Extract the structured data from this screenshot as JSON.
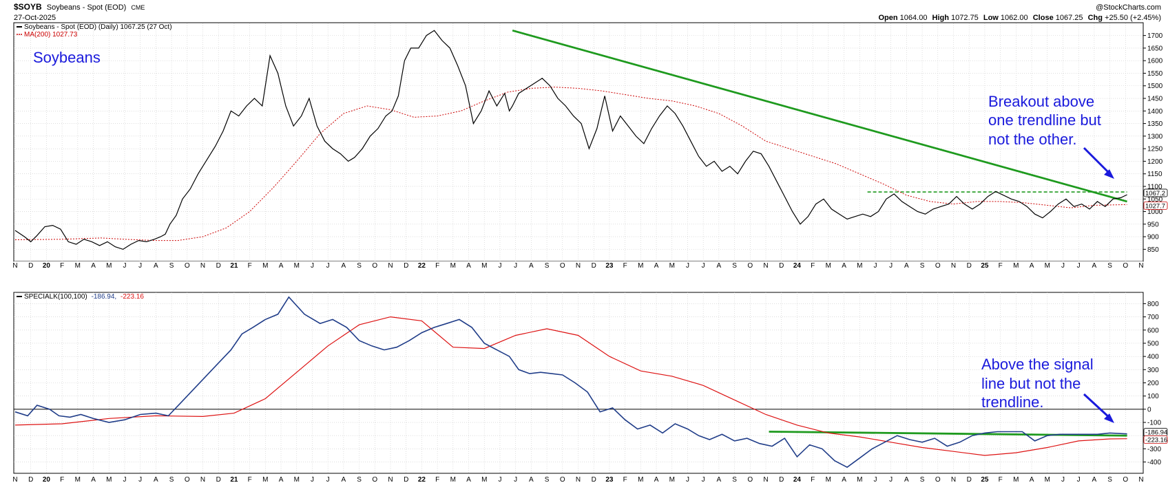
{
  "header": {
    "symbol": "$SOYB",
    "name": "Soybeans - Spot (EOD)",
    "exchange": "CME",
    "date": "27-Oct-2025",
    "copyright": "@StockCharts.com",
    "ohlc": {
      "open_label": "Open",
      "open": "1064.00",
      "high_label": "High",
      "high": "1072.75",
      "low_label": "Low",
      "low": "1062.00",
      "close_label": "Close",
      "close": "1067.25",
      "chg_label": "Chg",
      "chg": "+25.50 (+2.45%)"
    }
  },
  "colors": {
    "price": "#000000",
    "ma": "#cc0000",
    "special_k": "#1f3c88",
    "signal": "#dd1111",
    "trendline": "#1e9a1e",
    "annotation": "#1a1adc",
    "grid": "#c8c8c8"
  },
  "chart_data": [
    {
      "type": "line",
      "panel": "price",
      "title": "Soybeans",
      "legend": [
        {
          "label": "Soybeans - Spot (EOD) (Daily) 1067.25 (27 Oct)"
        },
        {
          "label": "MA(200) 1027.73"
        }
      ],
      "ylim": [
        810,
        1740
      ],
      "yticks": [
        850,
        900,
        950,
        1000,
        1050,
        1100,
        1150,
        1200,
        1250,
        1300,
        1350,
        1400,
        1450,
        1500,
        1550,
        1600,
        1650,
        1700
      ],
      "value_chips": [
        {
          "label": "1067.2",
          "value": 1067.25
        },
        {
          "label": "1027.7",
          "value": 1027.73
        }
      ],
      "series": [
        {
          "name": "Soybeans - Spot (EOD)",
          "x": [
            0,
            0.6,
            1.0,
            1.4,
            1.9,
            2.4,
            2.9,
            3.4,
            3.9,
            4.4,
            4.9,
            5.4,
            5.9,
            6.4,
            6.9,
            7.4,
            7.9,
            8.4,
            8.9,
            9.3,
            9.6,
            9.9,
            10.3,
            10.7,
            11.2,
            11.7,
            12.3,
            12.8,
            13.3,
            13.8,
            14.3,
            14.8,
            15.3,
            15.8,
            16.3,
            16.8,
            17.3,
            17.8,
            18.3,
            18.8,
            19.3,
            19.8,
            20.3,
            20.8,
            21.3,
            21.7,
            22.2,
            22.7,
            23.2,
            23.7,
            24.1,
            24.5,
            24.9,
            25.3,
            25.8,
            26.3,
            26.8,
            27.3,
            27.8,
            28.3,
            28.8,
            29.3,
            29.8,
            30.3,
            30.8,
            31.3,
            31.6,
            31.8,
            32.2,
            32.7,
            33.2,
            33.7,
            34.2,
            34.7,
            35.2,
            35.7,
            36.2,
            36.7,
            37.2,
            37.7,
            38.2,
            38.7,
            39.2,
            39.7,
            40.2,
            40.7,
            41.2,
            41.7,
            42.2,
            42.7,
            43.2,
            43.7,
            44.2,
            44.7,
            45.2,
            45.7,
            46.2,
            46.7,
            47.2,
            47.7,
            48.2,
            48.7,
            49.2,
            49.7,
            50.2,
            50.7,
            51.2,
            51.7,
            52.2,
            52.7,
            53.2,
            53.7,
            54.2,
            54.7,
            55.2,
            55.7,
            56.2,
            56.7,
            57.2,
            57.7,
            58.2,
            58.7,
            59.2,
            59.7,
            60.2,
            60.7,
            61.2,
            61.7,
            62.2,
            62.7,
            63.2,
            63.7,
            64.2,
            64.7,
            65.2,
            65.7,
            66.2,
            66.7,
            67.2,
            67.7,
            68.2,
            68.7,
            69.2,
            69.7,
            70.2,
            70.7,
            71.1
          ],
          "values": [
            925,
            900,
            880,
            905,
            940,
            945,
            930,
            880,
            870,
            890,
            880,
            865,
            880,
            860,
            850,
            870,
            885,
            880,
            890,
            900,
            910,
            950,
            985,
            1050,
            1090,
            1150,
            1210,
            1260,
            1320,
            1400,
            1380,
            1420,
            1450,
            1420,
            1620,
            1550,
            1420,
            1340,
            1380,
            1450,
            1340,
            1280,
            1250,
            1230,
            1200,
            1215,
            1250,
            1300,
            1330,
            1380,
            1400,
            1460,
            1600,
            1650,
            1650,
            1700,
            1720,
            1680,
            1650,
            1580,
            1500,
            1350,
            1400,
            1480,
            1420,
            1470,
            1400,
            1420,
            1470,
            1490,
            1510,
            1530,
            1500,
            1450,
            1420,
            1380,
            1350,
            1250,
            1330,
            1460,
            1320,
            1380,
            1340,
            1300,
            1270,
            1330,
            1380,
            1420,
            1390,
            1340,
            1280,
            1220,
            1180,
            1200,
            1160,
            1180,
            1150,
            1200,
            1240,
            1230,
            1180,
            1120,
            1060,
            1000,
            950,
            980,
            1030,
            1050,
            1010,
            990,
            970,
            980,
            990,
            980,
            1000,
            1050,
            1070,
            1040,
            1020,
            1000,
            990,
            1010,
            1020,
            1030,
            1060,
            1030,
            1010,
            1030,
            1060,
            1080,
            1065,
            1050,
            1040,
            1020,
            990,
            975,
            1000,
            1030,
            1050,
            1020,
            1030,
            1010,
            1040,
            1020,
            1050,
            1055,
            1067.25
          ]
        },
        {
          "name": "MA(200)",
          "x": [
            0,
            3,
            5.5,
            7,
            9,
            10.4,
            12,
            13.5,
            15,
            16.5,
            18,
            19.5,
            21,
            22.5,
            24,
            25.5,
            27,
            28.5,
            30,
            31.5,
            33,
            34.5,
            36,
            37.5,
            39,
            40.5,
            42,
            43.5,
            45,
            46.5,
            48,
            49.5,
            51,
            52.5,
            54,
            55.5,
            57,
            58.5,
            60,
            61.5,
            63,
            64.5,
            66,
            67.5,
            69,
            71.1
          ],
          "values": [
            888,
            890,
            895,
            890,
            885,
            885,
            900,
            935,
            1000,
            1095,
            1200,
            1310,
            1390,
            1420,
            1405,
            1375,
            1380,
            1400,
            1440,
            1475,
            1490,
            1495,
            1490,
            1480,
            1465,
            1450,
            1440,
            1420,
            1390,
            1340,
            1280,
            1250,
            1220,
            1190,
            1150,
            1110,
            1065,
            1040,
            1030,
            1040,
            1040,
            1035,
            1025,
            1015,
            1025,
            1027.73
          ]
        }
      ],
      "trendlines": [
        {
          "name": "long-term downtrend",
          "x": [
            31.8,
            71.1
          ],
          "values": [
            1720,
            1040
          ],
          "style": "solid"
        },
        {
          "name": "horizontal resistance",
          "x": [
            54.5,
            71.1
          ],
          "values": [
            1078,
            1078
          ],
          "style": "dashed"
        }
      ],
      "annotations": [
        {
          "text": "Breakout above"
        },
        {
          "text": "one trendline but"
        },
        {
          "text": "not the other."
        }
      ]
    },
    {
      "type": "line",
      "panel": "indicator",
      "legend": {
        "label": "SPECIALK(100,100)",
        "value_k": "-186.94,",
        "value_signal": "-223.16"
      },
      "ylim": [
        -470,
        870
      ],
      "yticks": [
        -400,
        -300,
        -200,
        -100,
        0,
        100,
        200,
        300,
        400,
        500,
        600,
        700,
        800
      ],
      "zero_line": 0,
      "value_chips": [
        {
          "label": "-186.94",
          "value": -186.94
        },
        {
          "label": "-223.16",
          "value": -223.16
        }
      ],
      "series": [
        {
          "name": "SPECIALK(100,100)",
          "x": [
            0,
            0.8,
            1.4,
            2.2,
            2.8,
            3.5,
            4.2,
            5,
            6,
            7,
            8,
            9,
            9.8,
            10.6,
            11.4,
            12.2,
            13,
            13.8,
            14.5,
            15.2,
            16,
            16.8,
            17.5,
            18.5,
            19.5,
            20.3,
            21.2,
            22,
            22.8,
            23.6,
            24.4,
            25.2,
            26,
            26.8,
            27.6,
            28.4,
            29.2,
            30,
            30.8,
            31.6,
            32.2,
            32.9,
            33.6,
            34.3,
            35,
            35.8,
            36.6,
            37.4,
            38.2,
            39,
            39.8,
            40.6,
            41.4,
            42.2,
            43,
            43.7,
            44.4,
            45.2,
            46,
            46.8,
            47.6,
            48.4,
            49.2,
            50,
            50.8,
            51.6,
            52.4,
            53.2,
            54,
            54.8,
            55.6,
            56.4,
            57.2,
            58,
            58.8,
            59.6,
            60.4,
            61.2,
            62,
            62.8,
            63.6,
            64.4,
            65.2,
            66,
            66.8,
            67.6,
            68.4,
            69.2,
            70,
            71.1
          ],
          "values": [
            -20,
            -50,
            30,
            0,
            -50,
            -60,
            -40,
            -70,
            -100,
            -80,
            -40,
            -30,
            -50,
            50,
            150,
            250,
            350,
            450,
            570,
            620,
            680,
            720,
            850,
            720,
            650,
            680,
            620,
            520,
            480,
            450,
            470,
            520,
            580,
            620,
            650,
            680,
            620,
            500,
            450,
            400,
            300,
            270,
            280,
            270,
            260,
            200,
            130,
            -20,
            10,
            -80,
            -150,
            -120,
            -180,
            -110,
            -150,
            -200,
            -230,
            -190,
            -240,
            -220,
            -260,
            -280,
            -220,
            -360,
            -270,
            -300,
            -390,
            -440,
            -370,
            -300,
            -250,
            -200,
            -230,
            -250,
            -220,
            -280,
            -250,
            -200,
            -180,
            -170,
            -170,
            -170,
            -240,
            -200,
            -190,
            -190,
            -190,
            -190,
            -180,
            -186.94
          ]
        },
        {
          "name": "Signal",
          "x": [
            0,
            3,
            6,
            9,
            12,
            14,
            16,
            18,
            20,
            22,
            24,
            26,
            28,
            30,
            32,
            34,
            36,
            38,
            40,
            42,
            44,
            46,
            48,
            50,
            52,
            54,
            56,
            58,
            60,
            62,
            64,
            66,
            68,
            70,
            71.1
          ],
          "values": [
            -120,
            -110,
            -70,
            -50,
            -55,
            -30,
            80,
            280,
            480,
            640,
            700,
            670,
            470,
            460,
            560,
            610,
            560,
            400,
            290,
            250,
            180,
            70,
            -40,
            -120,
            -180,
            -210,
            -250,
            -290,
            -320,
            -350,
            -330,
            -290,
            -240,
            -225,
            -223.16
          ]
        }
      ],
      "trendlines": [
        {
          "name": "indicator trendline",
          "x": [
            48.2,
            71.1
          ],
          "values": [
            -170,
            -200
          ],
          "style": "solid"
        }
      ],
      "annotations": [
        {
          "text": "Above the signal"
        },
        {
          "text": "line but not the"
        },
        {
          "text": "trendline."
        }
      ]
    }
  ],
  "x_axis": {
    "months": [
      "N",
      "D",
      "20",
      "F",
      "M",
      "A",
      "M",
      "J",
      "J",
      "A",
      "S",
      "O",
      "N",
      "D",
      "21",
      "F",
      "M",
      "A",
      "M",
      "J",
      "J",
      "A",
      "S",
      "O",
      "N",
      "D",
      "22",
      "F",
      "M",
      "A",
      "M",
      "J",
      "J",
      "A",
      "S",
      "O",
      "N",
      "D",
      "23",
      "F",
      "M",
      "A",
      "M",
      "J",
      "J",
      "A",
      "S",
      "O",
      "N",
      "D",
      "24",
      "F",
      "M",
      "A",
      "M",
      "J",
      "J",
      "A",
      "S",
      "O",
      "N",
      "D",
      "25",
      "F",
      "M",
      "A",
      "M",
      "J",
      "J",
      "A",
      "S",
      "O",
      "N"
    ],
    "bold_labels": [
      "20",
      "21",
      "22",
      "23",
      "24",
      "25"
    ]
  }
}
